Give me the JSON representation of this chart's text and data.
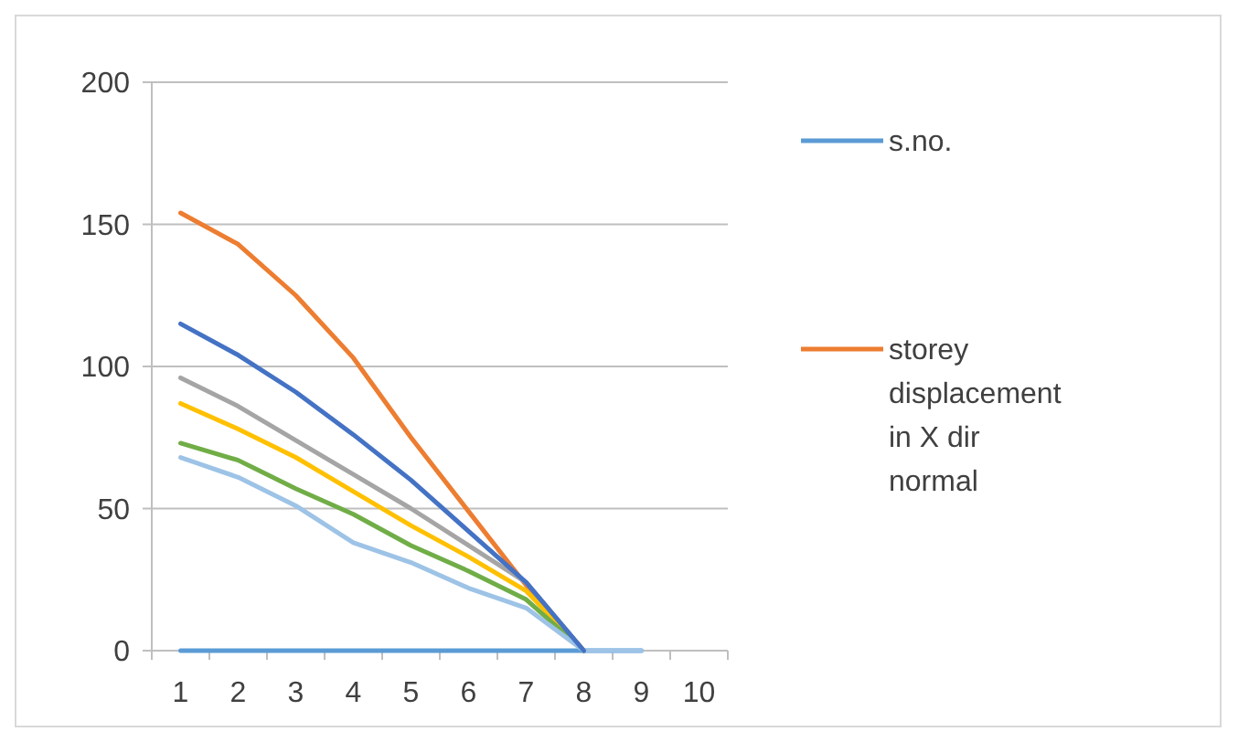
{
  "chart_data": {
    "type": "line",
    "categories": [
      "1",
      "2",
      "3",
      "4",
      "5",
      "6",
      "7",
      "8",
      "9",
      "10"
    ],
    "series": [
      {
        "name": "s.no.",
        "color": "#5b9bd5",
        "values": [
          0,
          0,
          0,
          0,
          0,
          0,
          0,
          0,
          0,
          null
        ]
      },
      {
        "name": "storey displacement in X dir normal",
        "color": "#ed7d31",
        "values": [
          154,
          143,
          125,
          103,
          75,
          49,
          23,
          0,
          null,
          null
        ]
      },
      {
        "color": "#a5a5a5",
        "values": [
          96,
          86,
          74,
          62,
          50,
          37,
          24,
          0,
          null,
          null
        ]
      },
      {
        "color": "#ffc000",
        "values": [
          87,
          78,
          68,
          56,
          44,
          33,
          21,
          0,
          null,
          null
        ]
      },
      {
        "color": "#70ad47",
        "values": [
          73,
          67,
          57,
          48,
          37,
          28,
          18,
          0,
          null,
          null
        ]
      },
      {
        "color": "#9dc3e6",
        "values": [
          68,
          61,
          51,
          38,
          31,
          22,
          15,
          0,
          0,
          null
        ]
      },
      {
        "color": "#4472c4",
        "values": [
          115,
          104,
          91,
          76,
          60,
          42,
          24,
          0,
          null,
          null
        ]
      }
    ],
    "ylim": [
      0,
      200
    ],
    "yticks": [
      0,
      50,
      100,
      150,
      200
    ],
    "grid": "y",
    "legend": "right",
    "marker": "none",
    "line_style": "solid"
  }
}
